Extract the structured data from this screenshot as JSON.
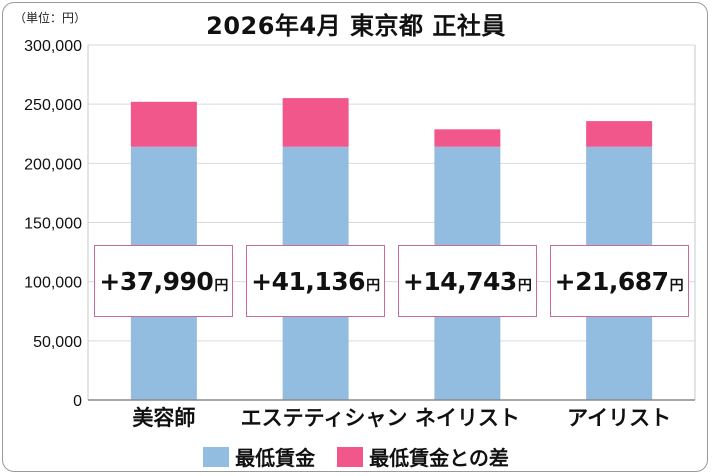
{
  "header": {
    "unit": "（単位：円）",
    "title": "2026年4月 東京都 正社員"
  },
  "colors": {
    "base": "#93bde0",
    "diff": "#f2578c",
    "box_border": "#c86b9c",
    "grid": "#d9d9d9"
  },
  "chart_data": {
    "type": "bar",
    "stacked": true,
    "title": "2026年4月 東京都 正社員",
    "categories": [
      "美容師",
      "エステティシャン",
      "ネイリスト",
      "アイリスト"
    ],
    "series": [
      {
        "name": "最低賃金",
        "values": [
          214000,
          214000,
          214000,
          214000
        ]
      },
      {
        "name": "最低賃金との差",
        "values": [
          37990,
          41136,
          14743,
          21687
        ]
      }
    ],
    "difference_labels": [
      "+37,990",
      "+41,136",
      "+14,743",
      "+21,687"
    ],
    "difference_unit": "円",
    "ylim": [
      0,
      300000
    ],
    "yticks": [
      0,
      50000,
      100000,
      150000,
      200000,
      250000,
      300000
    ],
    "ytick_labels": [
      "0",
      "50,000",
      "100,000",
      "150,000",
      "200,000",
      "250,000",
      "300,000"
    ],
    "grid": true,
    "legend_position": "bottom"
  }
}
